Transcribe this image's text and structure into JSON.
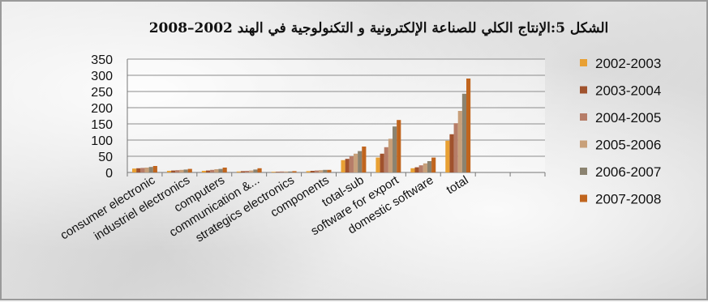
{
  "chart_data": {
    "type": "bar",
    "title": "الشكل 5:الإنتاج الكلي للصناعة الإلكترونية و التكنولوجية في الهند 2002–2008",
    "xlabel": "",
    "ylabel": "",
    "ylim": [
      0,
      350
    ],
    "yticks": [
      0,
      50,
      100,
      150,
      200,
      250,
      300,
      350
    ],
    "grid": true,
    "legend_position": "right",
    "categories": [
      "consumer electronic",
      "industriel electronics",
      "computers",
      "communication &...",
      "strategics electronics",
      "components",
      "total-sub",
      "software for export",
      "domestic software",
      "total",
      "",
      ""
    ],
    "series": [
      {
        "name": "2002-2003",
        "color": "#e8a033",
        "values": [
          12,
          5,
          5,
          3,
          2,
          4,
          38,
          46,
          13,
          98,
          0,
          0
        ]
      },
      {
        "name": "2003-2004",
        "color": "#a0522d",
        "values": [
          13,
          6,
          6,
          4,
          2,
          5,
          42,
          58,
          16,
          118,
          0,
          0
        ]
      },
      {
        "name": "2004-2005",
        "color": "#b67d68",
        "values": [
          14,
          7,
          8,
          5,
          3,
          6,
          50,
          78,
          22,
          152,
          0,
          0
        ]
      },
      {
        "name": "2005-2006",
        "color": "#c8a07a",
        "values": [
          15,
          8,
          10,
          6,
          3,
          7,
          58,
          104,
          28,
          190,
          0,
          0
        ]
      },
      {
        "name": "2006-2007",
        "color": "#8b8370",
        "values": [
          17,
          9,
          11,
          9,
          3,
          8,
          66,
          142,
          35,
          243,
          0,
          0
        ]
      },
      {
        "name": "2007-2008",
        "color": "#c0651e",
        "values": [
          20,
          11,
          15,
          13,
          4,
          8,
          80,
          162,
          46,
          290,
          0,
          0
        ]
      }
    ]
  }
}
